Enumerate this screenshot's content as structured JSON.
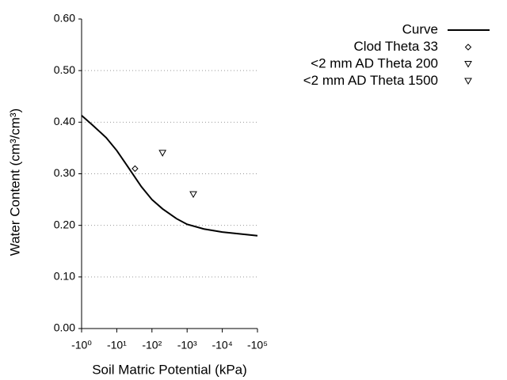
{
  "chart_data": {
    "type": "line",
    "x_label": "Soil Matric Potential (kPa)",
    "y_label": "Water Content (cm³/cm³)",
    "xscale": "log-negative",
    "xlim": [
      -1,
      -100000
    ],
    "xticks": [
      {
        "value": -1,
        "label": "-10⁰"
      },
      {
        "value": -10,
        "label": "-10¹"
      },
      {
        "value": -100,
        "label": "-10²"
      },
      {
        "value": -1000,
        "label": "-10³"
      },
      {
        "value": -10000,
        "label": "-10⁴"
      },
      {
        "value": -100000,
        "label": "-10⁵"
      }
    ],
    "ylim": [
      0,
      0.6
    ],
    "yticks": [
      {
        "value": 0,
        "label": "0.00"
      },
      {
        "value": 0.1,
        "label": "0.10"
      },
      {
        "value": 0.2,
        "label": "0.20"
      },
      {
        "value": 0.3,
        "label": "0.30"
      },
      {
        "value": 0.4,
        "label": "0.40"
      },
      {
        "value": 0.5,
        "label": "0.50"
      },
      {
        "value": 0.6,
        "label": "0.60"
      }
    ],
    "grid": true,
    "legend": "top-right",
    "series": [
      {
        "name": "Curve",
        "color": "#000000",
        "marker": "none",
        "x": [
          -1,
          -2,
          -5,
          -10,
          -20,
          -50,
          -100,
          -200,
          -500,
          -1000,
          -3000,
          -10000,
          -100000
        ],
        "values": [
          0.413,
          0.395,
          0.37,
          0.345,
          0.315,
          0.275,
          0.25,
          0.232,
          0.213,
          0.202,
          0.193,
          0.187,
          0.18
        ]
      },
      {
        "name": "Clod Theta 33",
        "color": "#000000",
        "marker": "diamond",
        "x": [
          -33
        ],
        "values": [
          0.31
        ]
      },
      {
        "name": "<2 mm AD Theta 200",
        "color": "#000000",
        "marker": "triangle-down",
        "x": [
          -200
        ],
        "values": [
          0.34
        ]
      },
      {
        "name": "<2 mm AD Theta 1500",
        "color": "#000000",
        "marker": "triangle-down",
        "x": [
          -1500
        ],
        "values": [
          0.26
        ]
      }
    ]
  }
}
